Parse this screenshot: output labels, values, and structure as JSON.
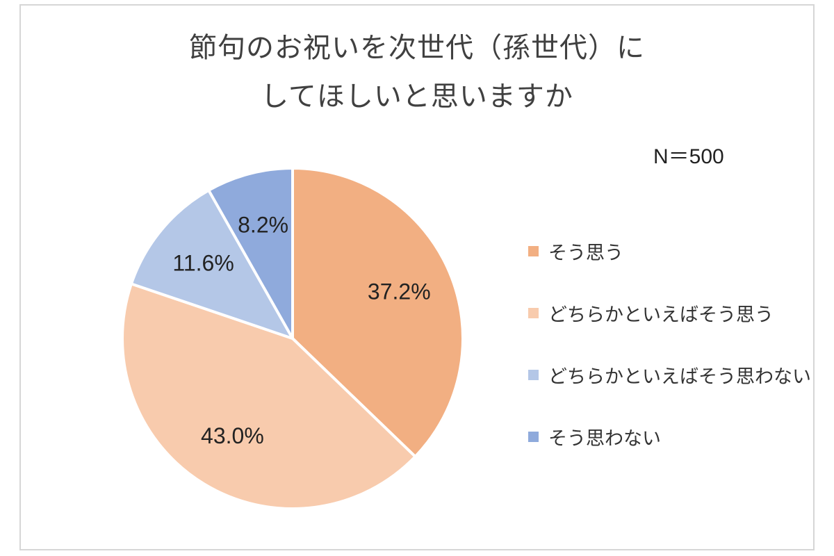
{
  "title_lines": [
    "節句のお祝いを次世代（孫世代）に",
    "してほしいと思いますか"
  ],
  "sample_note": "N＝500",
  "chart_data": {
    "type": "pie",
    "title": "節句のお祝いを次世代（孫世代）にしてほしいと思いますか",
    "categories": [
      "そう思う",
      "どちらかといえばそう思う",
      "どちらかといえばそう思わない",
      "そう思わない"
    ],
    "values": [
      37.2,
      43.0,
      11.6,
      8.2
    ],
    "labels": [
      "37.2%",
      "43.0%",
      "11.6%",
      "8.2%"
    ],
    "colors": [
      "#f2af82",
      "#f8cbad",
      "#b4c7e7",
      "#8faadc"
    ],
    "start_angle": "12 o'clock",
    "direction": "clockwise",
    "legend_position": "right"
  }
}
